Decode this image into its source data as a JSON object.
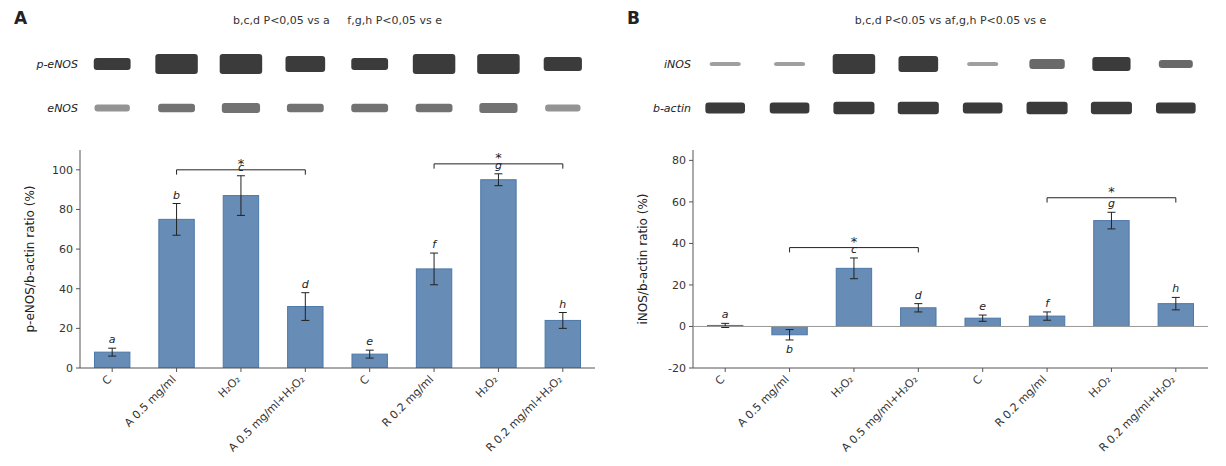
{
  "chart_data": [
    {
      "type": "bar",
      "title": "A",
      "subtitle": "b,c,d P<0,05 vs a     f,g,h P<0,05 vs e",
      "ylabel": "p-eNOS/b-actin ratio (%)",
      "categories": [
        "C",
        "A 0.5 mg/ml",
        "H₂O₂",
        "A 0.5 mg/ml+H₂O₂",
        "C",
        "R 0.2 mg/ml",
        "H₂O₂",
        "R 0.2 mg/ml+H₂O₂"
      ],
      "values": [
        8,
        75,
        87,
        31,
        7,
        50,
        95,
        24
      ],
      "errors": [
        2,
        8,
        10,
        7,
        2,
        8,
        3,
        4
      ],
      "bar_labels": [
        "a",
        "b",
        "c",
        "d",
        "e",
        "f",
        "g",
        "h"
      ],
      "color": "#4c78a8",
      "grid": false,
      "ylim": [
        0,
        110
      ],
      "yticks": [
        0,
        20,
        40,
        60,
        80,
        100
      ],
      "brackets": [
        {
          "from": 1,
          "to": 3,
          "y": 100,
          "label": "*"
        },
        {
          "from": 5,
          "to": 7,
          "y": 103,
          "label": "*"
        }
      ],
      "blots": [
        {
          "name": "p-eNOS",
          "color": "#2a2a2a",
          "values": [
            0.6,
            1.0,
            1.0,
            0.8,
            0.6,
            1.0,
            1.0,
            0.7
          ]
        },
        {
          "name": "eNOS",
          "color": "#666666",
          "values": [
            0.5,
            0.6,
            0.7,
            0.6,
            0.6,
            0.6,
            0.7,
            0.5
          ]
        }
      ]
    },
    {
      "type": "bar",
      "title": "B",
      "subtitle": "b,c,d P<0.05 vs af,g,h P<0.05 vs e",
      "ylabel": "iNOS/b-actin ratio (%)",
      "categories": [
        "C",
        "A 0.5 mg/ml",
        "H₂O₂",
        "A 0.5 mg/ml+H₂O₂",
        "C",
        "R 0.2 mg/ml",
        "H₂O₂",
        "R 0.2 mg/ml+H₂O₂"
      ],
      "values": [
        0.5,
        -4,
        28,
        9,
        4,
        5,
        51,
        11
      ],
      "errors": [
        1.0,
        2.5,
        5,
        2,
        1.5,
        2,
        4,
        3
      ],
      "bar_labels": [
        "a",
        "b",
        "c",
        "d",
        "e",
        "f",
        "g",
        "h"
      ],
      "color": "#4c78a8",
      "grid": false,
      "ylim": [
        -20,
        85
      ],
      "yticks": [
        -20,
        0,
        20,
        40,
        60,
        80
      ],
      "brackets": [
        {
          "from": 1,
          "to": 3,
          "y": 38,
          "label": "*"
        },
        {
          "from": 5,
          "to": 7,
          "y": 62,
          "label": "*"
        }
      ],
      "blots": [
        {
          "name": "iNOS",
          "color": "#2a2a2a",
          "values": [
            0.2,
            0.2,
            1.0,
            0.8,
            0.2,
            0.5,
            0.7,
            0.4
          ]
        },
        {
          "name": "b-actin",
          "color": "#2a2a2a",
          "values": [
            0.8,
            0.8,
            0.9,
            0.9,
            0.8,
            0.9,
            0.9,
            0.8
          ]
        }
      ]
    }
  ]
}
